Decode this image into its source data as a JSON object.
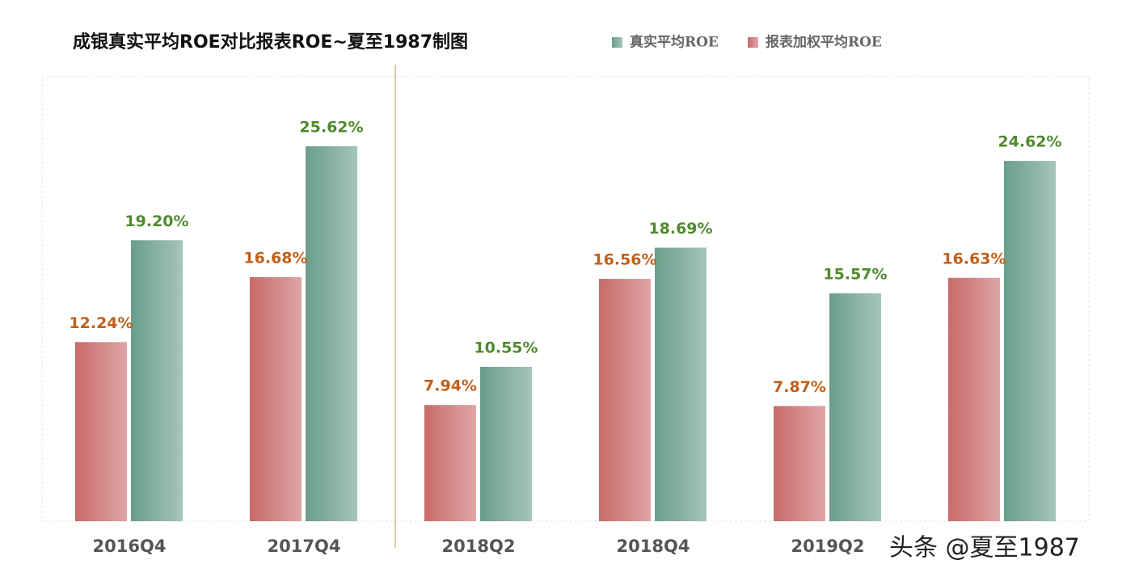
{
  "chart_data": {
    "type": "bar",
    "title": "成银真实平均ROE对比报表ROE~夏至1987制图",
    "categories": [
      "2016Q4",
      "2017Q4",
      "2018Q2",
      "2018Q4",
      "2019Q2",
      null
    ],
    "series": [
      {
        "name": "真实平均ROE",
        "color": "#6a9e8a",
        "label_color": "#4f8a2e",
        "values": [
          19.2,
          25.62,
          10.55,
          18.69,
          15.57,
          24.62
        ],
        "value_labels": [
          "19.20%",
          "25.62%",
          "10.55%",
          "18.69%",
          "15.57%",
          "24.62%"
        ]
      },
      {
        "name": "报表加权平均ROE",
        "color": "#c96a6a",
        "label_color": "#c0601a",
        "values": [
          12.24,
          16.68,
          7.94,
          16.56,
          7.87,
          16.63
        ],
        "value_labels": [
          "12.24%",
          "16.68%",
          "7.94%",
          "16.56%",
          "7.87%",
          "16.63%"
        ]
      }
    ],
    "watermark": "头条 @夏至1987"
  }
}
